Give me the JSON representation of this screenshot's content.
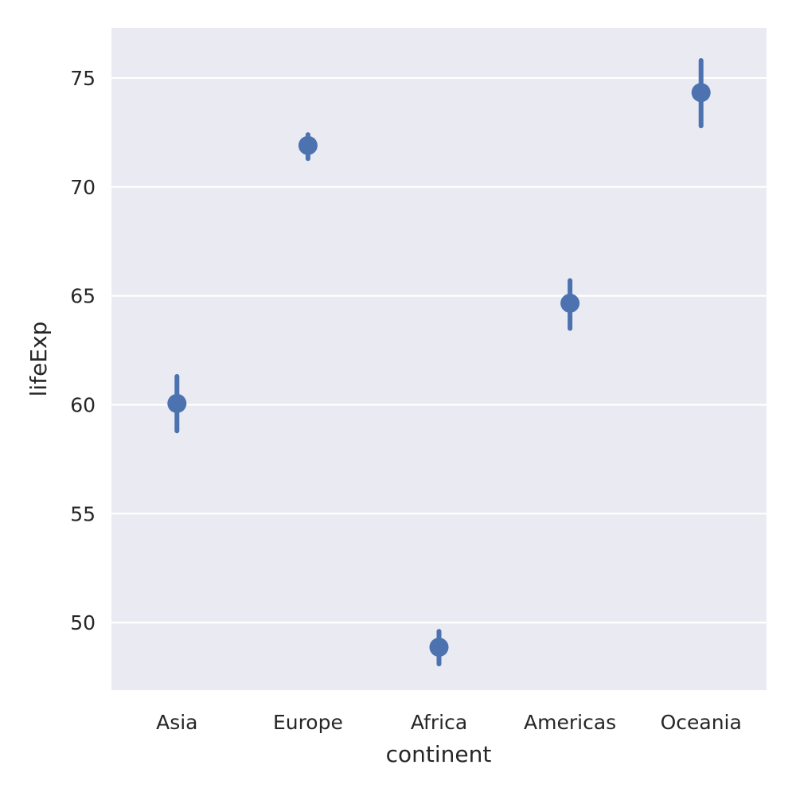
{
  "chart_data": {
    "type": "pointplot",
    "xlabel": "continent",
    "ylabel": "lifeExp",
    "categories": [
      "Asia",
      "Europe",
      "Africa",
      "Americas",
      "Oceania"
    ],
    "series": [
      {
        "values": [
          60.06,
          71.9,
          48.87,
          64.66,
          74.33
        ],
        "ci_low": [
          58.8,
          71.3,
          48.1,
          63.5,
          72.8
        ],
        "ci_high": [
          61.3,
          72.4,
          49.6,
          65.7,
          75.8
        ]
      }
    ],
    "ylim": [
      46.9,
      77.3
    ],
    "yticks": [
      50,
      55,
      60,
      65,
      70,
      75
    ],
    "grid": true,
    "colors": {
      "background": "#eaeaf2",
      "grid": "#ffffff",
      "point": "#4c72b0",
      "text": "#262626"
    }
  }
}
